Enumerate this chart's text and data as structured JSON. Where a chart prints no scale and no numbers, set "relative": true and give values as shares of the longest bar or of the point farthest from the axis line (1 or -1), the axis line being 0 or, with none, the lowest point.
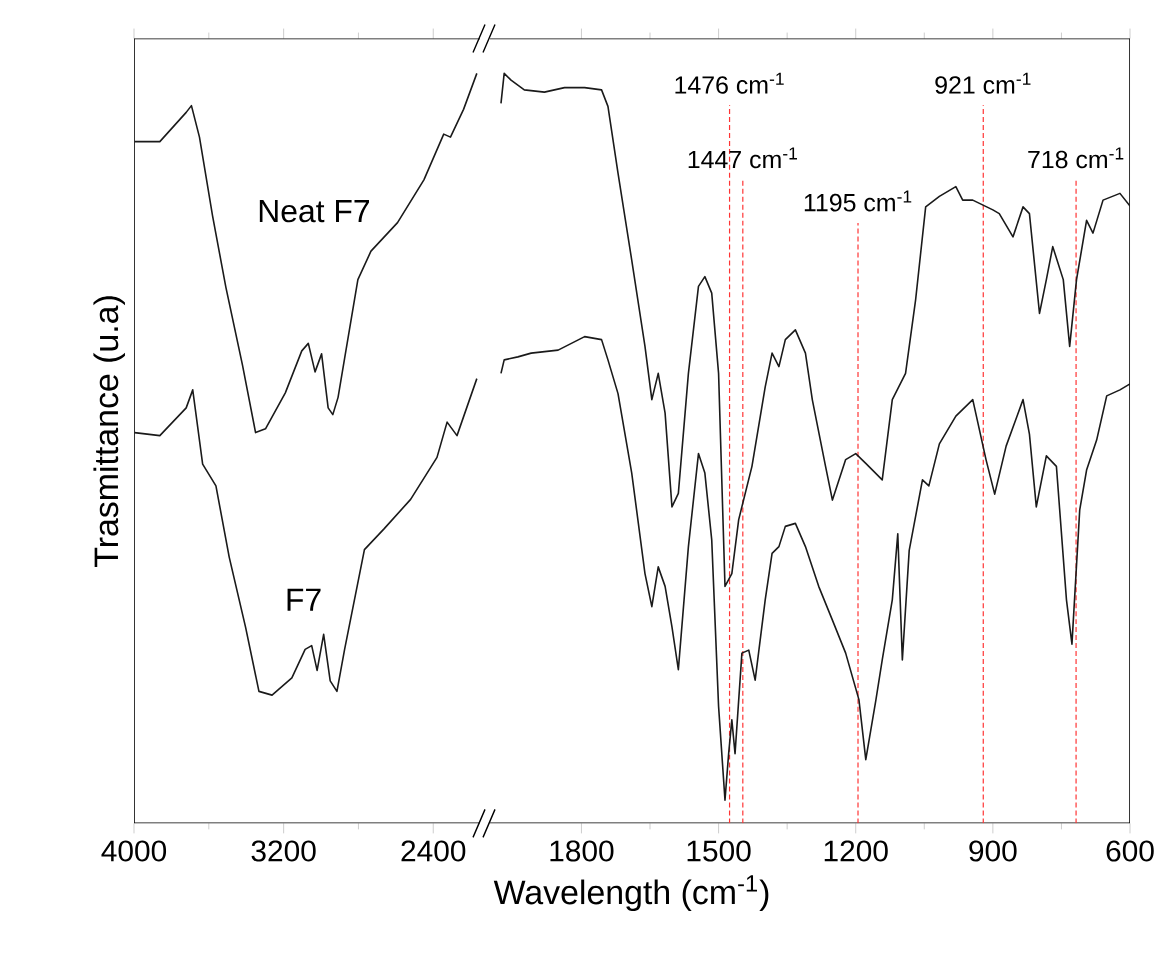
{
  "chart_data": [
    {
      "type": "line",
      "ylabel": "Trasmittance (u.a)",
      "relative": true,
      "xlim": [
        4000,
        2150
      ],
      "xticks": [
        4000,
        3200,
        2400
      ],
      "series": [
        {
          "name": "Neat F7",
          "color": "#1a1a1a",
          "x": [
            3997,
            3862,
            3721,
            3693,
            3650,
            3580,
            3509,
            3420,
            3350,
            3297,
            3191,
            3103,
            3068,
            3032,
            2997,
            2962,
            2937,
            2909,
            2874,
            2803,
            2733,
            2591,
            2450,
            2344,
            2308,
            2238,
            2167
          ],
          "values": [
            0.909,
            0.909,
            0.948,
            0.957,
            0.915,
            0.81,
            0.715,
            0.611,
            0.521,
            0.526,
            0.574,
            0.63,
            0.64,
            0.602,
            0.626,
            0.554,
            0.545,
            0.568,
            0.62,
            0.725,
            0.763,
            0.801,
            0.858,
            0.919,
            0.915,
            0.952,
            1.0
          ]
        },
        {
          "name": "F7",
          "color": "#1a1a1a",
          "x": [
            3997,
            3862,
            3721,
            3686,
            3633,
            3562,
            3491,
            3403,
            3332,
            3262,
            3156,
            3085,
            3050,
            3021,
            2986,
            2951,
            2915,
            2874,
            2768,
            2662,
            2521,
            2380,
            2326,
            2273,
            2167
          ],
          "values": [
            0.521,
            0.517,
            0.554,
            0.578,
            0.479,
            0.45,
            0.355,
            0.261,
            0.176,
            0.171,
            0.194,
            0.232,
            0.237,
            0.204,
            0.252,
            0.19,
            0.176,
            0.232,
            0.365,
            0.393,
            0.432,
            0.488,
            0.535,
            0.517,
            0.593
          ]
        }
      ]
    },
    {
      "type": "line",
      "xlabel": "Wavelength (cm$^{-1}$)",
      "relative": true,
      "xlim": [
        2000,
        600
      ],
      "xticks": [
        1800,
        1500,
        1200,
        900,
        600
      ],
      "series": [
        {
          "color": "#1a1a1a",
          "x": [
            1976,
            1969,
            1954,
            1925,
            1881,
            1837,
            1793,
            1756,
            1742,
            1720,
            1690,
            1661,
            1646,
            1632,
            1617,
            1602,
            1588,
            1566,
            1544,
            1530,
            1515,
            1500,
            1486,
            1471,
            1456,
            1427,
            1398,
            1383,
            1368,
            1354,
            1332,
            1310,
            1295,
            1266,
            1251,
            1222,
            1200,
            1178,
            1142,
            1120,
            1091,
            1069,
            1047,
            1017,
            981,
            966,
            944,
            900,
            886,
            856,
            834,
            820,
            798,
            783,
            769,
            746,
            732,
            717,
            695,
            681,
            659,
            622,
            600
          ],
          "values": [
            0.96,
            1.0,
            0.991,
            0.978,
            0.975,
            0.981,
            0.981,
            0.978,
            0.956,
            0.867,
            0.751,
            0.636,
            0.565,
            0.6,
            0.547,
            0.422,
            0.44,
            0.6,
            0.716,
            0.729,
            0.707,
            0.6,
            0.316,
            0.333,
            0.405,
            0.476,
            0.582,
            0.627,
            0.609,
            0.645,
            0.658,
            0.627,
            0.565,
            0.476,
            0.431,
            0.485,
            0.493,
            0.48,
            0.458,
            0.565,
            0.6,
            0.698,
            0.822,
            0.836,
            0.849,
            0.831,
            0.831,
            0.818,
            0.813,
            0.782,
            0.822,
            0.813,
            0.68,
            0.725,
            0.769,
            0.725,
            0.636,
            0.725,
            0.804,
            0.787,
            0.831,
            0.84,
            0.823
          ]
        },
        {
          "color": "#1a1a1a",
          "x": [
            1976,
            1969,
            1939,
            1910,
            1851,
            1793,
            1756,
            1742,
            1720,
            1690,
            1661,
            1646,
            1632,
            1617,
            1602,
            1588,
            1566,
            1544,
            1530,
            1515,
            1500,
            1486,
            1478,
            1471,
            1464,
            1449,
            1434,
            1420,
            1398,
            1383,
            1368,
            1354,
            1332,
            1310,
            1281,
            1251,
            1222,
            1193,
            1178,
            1156,
            1142,
            1120,
            1108,
            1098,
            1083,
            1054,
            1040,
            1017,
            981,
            944,
            915,
            896,
            871,
            834,
            820,
            805,
            783,
            761,
            739,
            727,
            710,
            695,
            673,
            651,
            622,
            600
          ],
          "values": [
            0.6,
            0.618,
            0.622,
            0.627,
            0.631,
            0.649,
            0.645,
            0.618,
            0.573,
            0.467,
            0.333,
            0.289,
            0.342,
            0.316,
            0.262,
            0.205,
            0.369,
            0.493,
            0.467,
            0.378,
            0.156,
            0.031,
            0.093,
            0.138,
            0.093,
            0.227,
            0.231,
            0.191,
            0.298,
            0.36,
            0.369,
            0.396,
            0.4,
            0.369,
            0.316,
            0.271,
            0.227,
            0.165,
            0.085,
            0.164,
            0.218,
            0.298,
            0.386,
            0.218,
            0.364,
            0.458,
            0.45,
            0.506,
            0.543,
            0.565,
            0.485,
            0.439,
            0.503,
            0.565,
            0.519,
            0.422,
            0.49,
            0.476,
            0.298,
            0.239,
            0.418,
            0.471,
            0.511,
            0.57,
            0.578,
            0.586
          ]
        }
      ],
      "ref_lines": [
        {
          "axis": "x",
          "value": 1476,
          "label": "1476 cm$^{-1}$",
          "color": "#ff3333",
          "line_style": "dashed"
        },
        {
          "axis": "x",
          "value": 1447,
          "label": "1447 cm$^{-1}$",
          "color": "#ff3333",
          "line_style": "dashed"
        },
        {
          "axis": "x",
          "value": 1195,
          "label": "1195 cm$^{-1}$",
          "color": "#ff3333",
          "line_style": "dashed"
        },
        {
          "axis": "x",
          "value": 921,
          "label": "921 cm$^{-1}$",
          "color": "#ff3333",
          "line_style": "dashed"
        },
        {
          "axis": "x",
          "value": 718,
          "label": "718 cm$^{-1}$",
          "color": "#ff3333",
          "line_style": "dashed"
        }
      ]
    }
  ]
}
